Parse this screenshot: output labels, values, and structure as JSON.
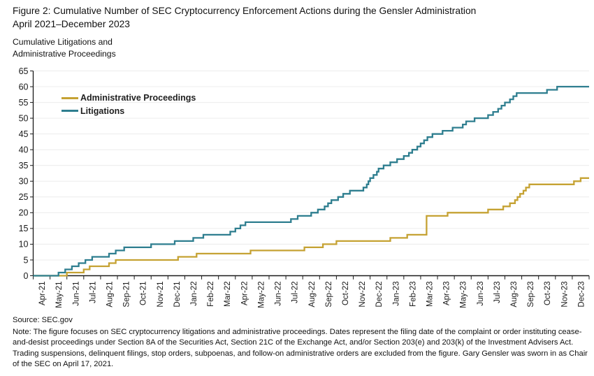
{
  "figure": {
    "title_line1": "Figure 2: Cumulative Number of SEC Cryptocurrency Enforcement Actions during the Gensler Administration",
    "title_line2": "April 2021–December 2023",
    "y_axis_title_line1": "Cumulative Litigations and",
    "y_axis_title_line2": "Administrative Proceedings"
  },
  "legend": {
    "items": [
      {
        "label": "Administrative Proceedings",
        "color": "#C5A233"
      },
      {
        "label": "Litigations",
        "color": "#2E7E8F"
      }
    ]
  },
  "footer": {
    "source": "Source: SEC.gov",
    "note": "Note: The figure focuses on SEC cryptocurrency litigations and administrative proceedings. Dates represent the filing date of the complaint or order instituting cease-and-desist proceedings under Section 8A of the Securities Act, Section 21C of the Exchange Act, and/or Section 203(e) and 203(k) of the Investment Advisers Act. Trading suspensions, delinquent filings, stop orders, subpoenas, and follow-on administrative orders are excluded from the figure. Gary Gensler was sworn in as Chair of the SEC on April 17, 2021."
  },
  "colors": {
    "axis": "#1a1a1a",
    "gridline": "#ececec",
    "tick_label": "#1a1a1a",
    "background": "#ffffff"
  },
  "chart_data": {
    "type": "line",
    "subtype": "cumulative-step",
    "title": "Figure 2: Cumulative Number of SEC Cryptocurrency Enforcement Actions during the Gensler Administration, April 2021–December 2023",
    "xlabel": "",
    "ylabel": "Cumulative Litigations and Administrative Proceedings",
    "ylim": [
      0,
      65
    ],
    "ytick_step": 5,
    "grid": "horizontal",
    "legend_position": "inside-top-left",
    "x_labels": [
      "Apr-21",
      "May-21",
      "Jun-21",
      "Jul-21",
      "Aug-21",
      "Sep-21",
      "Oct-21",
      "Nov-21",
      "Dec-21",
      "Jan-22",
      "Feb-22",
      "Mar-22",
      "Apr-22",
      "May-22",
      "Jun-22",
      "Jul-22",
      "Aug-22",
      "Sep-22",
      "Oct-22",
      "Nov-22",
      "Dec-22",
      "Jan-23",
      "Feb-23",
      "Mar-23",
      "Apr-23",
      "May-23",
      "Jun-23",
      "Jul-23",
      "Aug-23",
      "Sep-23",
      "Oct-23",
      "Nov-23",
      "Dec-23"
    ],
    "series": [
      {
        "name": "Administrative Proceedings",
        "color": "#C5A233",
        "end_value": 31,
        "steps": [
          [
            0,
            0
          ],
          [
            2.0,
            1
          ],
          [
            3.0,
            2
          ],
          [
            3.35,
            3
          ],
          [
            4.5,
            4
          ],
          [
            4.9,
            5
          ],
          [
            8.6,
            6
          ],
          [
            9.7,
            7
          ],
          [
            12.9,
            8
          ],
          [
            16.1,
            9
          ],
          [
            17.2,
            10
          ],
          [
            18.0,
            11
          ],
          [
            21.2,
            12
          ],
          [
            22.2,
            13
          ],
          [
            23.35,
            19
          ],
          [
            24.6,
            20
          ],
          [
            27.0,
            21
          ],
          [
            27.9,
            22
          ],
          [
            28.3,
            23
          ],
          [
            28.6,
            24
          ],
          [
            28.75,
            25
          ],
          [
            28.9,
            26
          ],
          [
            29.1,
            27
          ],
          [
            29.25,
            28
          ],
          [
            29.45,
            29
          ],
          [
            32.1,
            30
          ],
          [
            32.5,
            31
          ],
          [
            33,
            31
          ]
        ]
      },
      {
        "name": "Litigations",
        "color": "#2E7E8F",
        "end_value": 60,
        "steps": [
          [
            0,
            0
          ],
          [
            1.5,
            1
          ],
          [
            1.9,
            2
          ],
          [
            2.3,
            3
          ],
          [
            2.7,
            4
          ],
          [
            3.1,
            5
          ],
          [
            3.5,
            6
          ],
          [
            4.5,
            7
          ],
          [
            4.9,
            8
          ],
          [
            5.4,
            9
          ],
          [
            7.0,
            10
          ],
          [
            8.4,
            11
          ],
          [
            9.5,
            12
          ],
          [
            10.1,
            13
          ],
          [
            11.7,
            14
          ],
          [
            12.0,
            15
          ],
          [
            12.3,
            16
          ],
          [
            12.6,
            17
          ],
          [
            15.3,
            18
          ],
          [
            15.7,
            19
          ],
          [
            16.5,
            20
          ],
          [
            16.9,
            21
          ],
          [
            17.3,
            22
          ],
          [
            17.5,
            23
          ],
          [
            17.7,
            24
          ],
          [
            18.1,
            25
          ],
          [
            18.4,
            26
          ],
          [
            18.8,
            27
          ],
          [
            19.6,
            28
          ],
          [
            19.8,
            29
          ],
          [
            19.9,
            30
          ],
          [
            20.0,
            31
          ],
          [
            20.2,
            32
          ],
          [
            20.4,
            33
          ],
          [
            20.5,
            34
          ],
          [
            20.8,
            35
          ],
          [
            21.2,
            36
          ],
          [
            21.6,
            37
          ],
          [
            22.0,
            38
          ],
          [
            22.3,
            39
          ],
          [
            22.5,
            40
          ],
          [
            22.8,
            41
          ],
          [
            23.0,
            42
          ],
          [
            23.2,
            43
          ],
          [
            23.4,
            44
          ],
          [
            23.7,
            45
          ],
          [
            24.3,
            46
          ],
          [
            24.9,
            47
          ],
          [
            25.5,
            48
          ],
          [
            25.7,
            49
          ],
          [
            26.2,
            50
          ],
          [
            27.0,
            51
          ],
          [
            27.3,
            52
          ],
          [
            27.6,
            53
          ],
          [
            27.8,
            54
          ],
          [
            28.0,
            55
          ],
          [
            28.3,
            56
          ],
          [
            28.5,
            57
          ],
          [
            28.7,
            58
          ],
          [
            30.5,
            59
          ],
          [
            31.1,
            60
          ],
          [
            33,
            60
          ]
        ]
      }
    ]
  }
}
